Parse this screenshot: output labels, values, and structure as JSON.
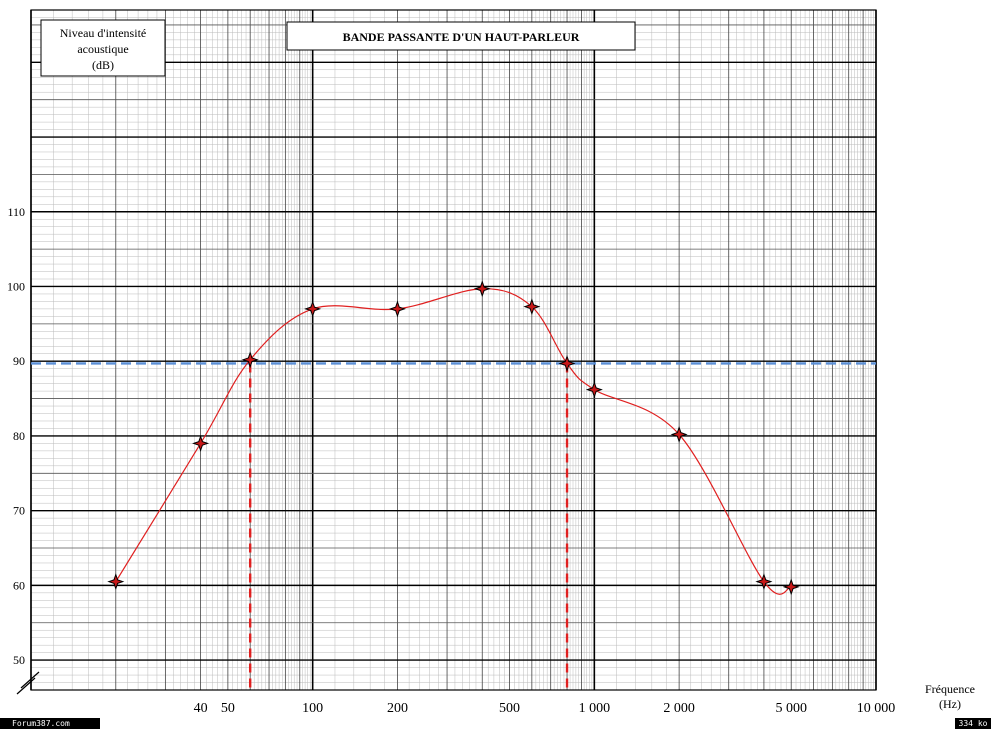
{
  "chart_data": {
    "type": "line",
    "title": "BANDE PASSANTE D'UN HAUT-PARLEUR",
    "ylabel": "Niveau d'intensité acoustique (dB)",
    "ylabel_lines": [
      "Niveau d'intensité",
      "acoustique",
      "(dB)"
    ],
    "xlabel": "Fréquence (Hz)",
    "xlabel_lines": [
      "Fréquence",
      "(Hz)"
    ],
    "x_scale": "log",
    "xlim": [
      10,
      10000
    ],
    "ylim": [
      46,
      137
    ],
    "x_ticks": [
      {
        "value": 40,
        "label": "40"
      },
      {
        "value": 50,
        "label": "50"
      },
      {
        "value": 100,
        "label": "100"
      },
      {
        "value": 200,
        "label": "200"
      },
      {
        "value": 500,
        "label": "500"
      },
      {
        "value": 1000,
        "label": "1 000"
      },
      {
        "value": 2000,
        "label": "2 000"
      },
      {
        "value": 5000,
        "label": "5 000"
      },
      {
        "value": 10000,
        "label": "10 000"
      }
    ],
    "y_ticks": [
      50,
      60,
      70,
      80,
      90,
      100,
      110
    ],
    "grid": true,
    "series": [
      {
        "color": "#e02020",
        "x": [
          20,
          40,
          60,
          100,
          200,
          400,
          600,
          800,
          1000,
          2000,
          4000,
          5000
        ],
        "y": [
          60.5,
          79,
          90.2,
          97,
          97,
          99.7,
          97.3,
          89.7,
          86.2,
          80.2,
          60.5,
          59.8
        ]
      }
    ],
    "reference_line": {
      "y": 89.7,
      "color": "#5b8fd6"
    },
    "cutoff_lines": [
      {
        "x": 60,
        "color": "#e02020"
      },
      {
        "x": 800,
        "color": "#e02020"
      }
    ]
  },
  "footer": {
    "left": "Forum387.com",
    "right": "334 ko"
  }
}
